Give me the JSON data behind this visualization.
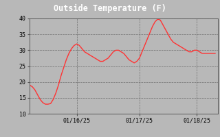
{
  "title": "Outside Temperature (F)",
  "title_color": "#ffffff",
  "background_color": "#b8b8b8",
  "plot_bg_color": "#b8b8b8",
  "line_color": "#ff3333",
  "line_width": 1.0,
  "ylim": [
    10.0,
    40.0
  ],
  "yticks": [
    10.0,
    15.0,
    20.0,
    25.0,
    30.0,
    35.0,
    40.0
  ],
  "grid_color": "#666666",
  "grid_style": "--",
  "title_bg": "#111111",
  "x_labels": [
    "01/16/25",
    "01/17/25",
    "01/18/25"
  ],
  "x_tick_pos": [
    18,
    42,
    64
  ],
  "xlim": [
    0,
    72
  ],
  "time_series": [
    [
      0,
      19.0
    ],
    [
      1,
      18.5
    ],
    [
      2,
      17.5
    ],
    [
      3,
      16.0
    ],
    [
      4,
      14.5
    ],
    [
      5,
      13.5
    ],
    [
      6,
      13.0
    ],
    [
      7,
      13.0
    ],
    [
      8,
      13.2
    ],
    [
      9,
      14.5
    ],
    [
      10,
      16.5
    ],
    [
      11,
      19.0
    ],
    [
      12,
      22.0
    ],
    [
      13,
      24.5
    ],
    [
      14,
      27.0
    ],
    [
      15,
      29.0
    ],
    [
      16,
      30.5
    ],
    [
      17,
      31.5
    ],
    [
      18,
      32.0
    ],
    [
      19,
      31.5
    ],
    [
      20,
      30.5
    ],
    [
      21,
      29.5
    ],
    [
      22,
      29.0
    ],
    [
      23,
      28.5
    ],
    [
      24,
      28.0
    ],
    [
      25,
      27.5
    ],
    [
      26,
      27.0
    ],
    [
      27,
      26.5
    ],
    [
      28,
      26.5
    ],
    [
      29,
      27.0
    ],
    [
      30,
      27.5
    ],
    [
      31,
      28.5
    ],
    [
      32,
      29.5
    ],
    [
      33,
      30.0
    ],
    [
      34,
      30.0
    ],
    [
      35,
      29.5
    ],
    [
      36,
      29.0
    ],
    [
      37,
      28.0
    ],
    [
      38,
      27.0
    ],
    [
      39,
      26.5
    ],
    [
      40,
      26.0
    ],
    [
      41,
      26.5
    ],
    [
      42,
      27.5
    ],
    [
      43,
      29.5
    ],
    [
      44,
      31.5
    ],
    [
      45,
      33.5
    ],
    [
      46,
      35.5
    ],
    [
      47,
      37.5
    ],
    [
      48,
      39.0
    ],
    [
      49,
      39.8
    ],
    [
      50,
      39.5
    ],
    [
      51,
      38.0
    ],
    [
      52,
      36.5
    ],
    [
      53,
      35.0
    ],
    [
      54,
      33.5
    ],
    [
      55,
      32.5
    ],
    [
      56,
      32.0
    ],
    [
      57,
      31.5
    ],
    [
      58,
      31.0
    ],
    [
      59,
      30.5
    ],
    [
      60,
      30.0
    ],
    [
      61,
      29.5
    ],
    [
      62,
      29.5
    ],
    [
      63,
      30.0
    ],
    [
      64,
      30.0
    ],
    [
      65,
      29.5
    ],
    [
      66,
      29.0
    ],
    [
      67,
      29.0
    ],
    [
      68,
      29.0
    ],
    [
      69,
      29.0
    ],
    [
      70,
      29.0
    ],
    [
      71,
      29.0
    ]
  ]
}
